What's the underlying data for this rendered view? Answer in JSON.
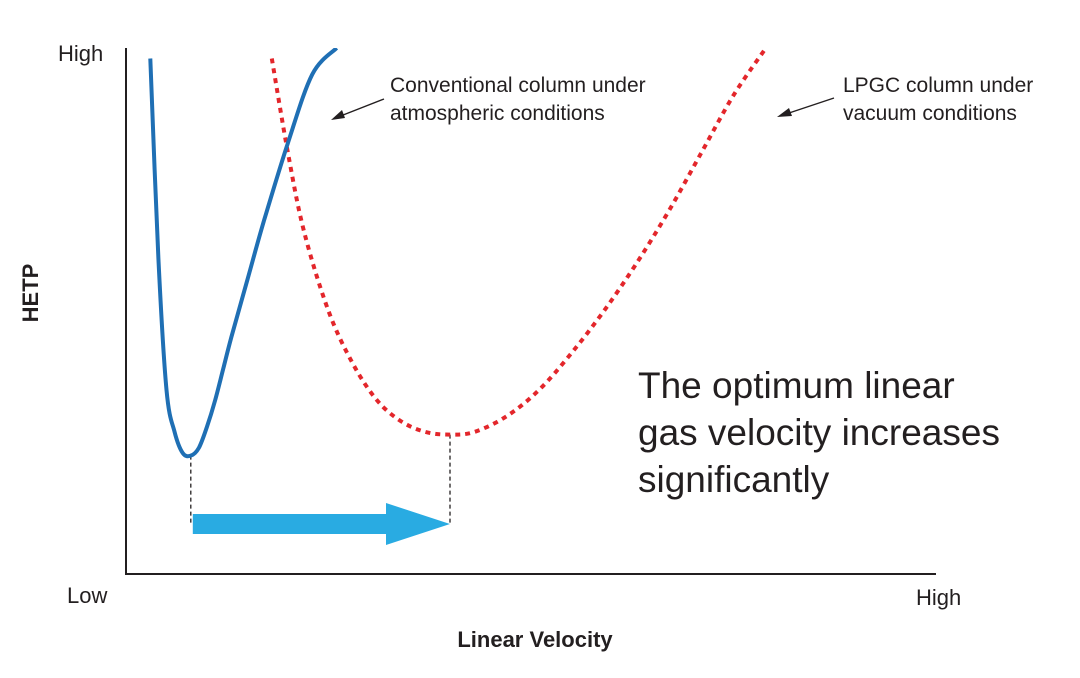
{
  "chart_data": {
    "type": "line",
    "title": "",
    "xlabel": "Linear Velocity",
    "ylabel": "HETP",
    "x_tick_labels": {
      "low": "Low",
      "high": "High"
    },
    "y_tick_labels": {
      "low": "",
      "high": "High"
    },
    "xlim": [
      0,
      100
    ],
    "ylim": [
      0,
      100
    ],
    "series": [
      {
        "name": "Conventional column under atmospheric conditions",
        "style": "solid",
        "color": "#1f6fb4",
        "x": [
          3,
          4,
          5,
          6,
          7,
          8,
          9,
          10,
          11,
          12,
          13,
          15,
          17,
          20,
          23,
          26
        ],
        "y": [
          98,
          60,
          35,
          27,
          23,
          22.5,
          24,
          28,
          33,
          39,
          45,
          56,
          67,
          82,
          95,
          100
        ]
      },
      {
        "name": "LPGC column under vacuum conditions",
        "style": "dotted",
        "color": "#e3262b",
        "x": [
          18,
          20,
          22,
          25,
          28,
          31,
          34,
          37,
          40,
          43,
          47,
          51,
          55,
          59,
          63,
          67,
          71,
          75,
          79
        ],
        "y": [
          98,
          80,
          65,
          50,
          40,
          33,
          29,
          27,
          26.5,
          27,
          30,
          35,
          42,
          50,
          59,
          69,
          80,
          91,
          100
        ]
      }
    ],
    "annotations": {
      "legend_conventional_line1": "Conventional column under",
      "legend_conventional_line2": "atmospheric conditions",
      "legend_lpgc_line1": "LPGC column under",
      "legend_lpgc_line2": "vacuum conditions",
      "note_line1": "The optimum linear",
      "note_line2": "gas velocity increases",
      "note_line3": "significantly"
    },
    "minima": {
      "conventional": {
        "x": 8,
        "y": 22.5
      },
      "lpgc": {
        "x": 40,
        "y": 26.5
      }
    },
    "arrow": {
      "from_x": 8,
      "to_x": 40,
      "color": "#29abe2"
    }
  }
}
